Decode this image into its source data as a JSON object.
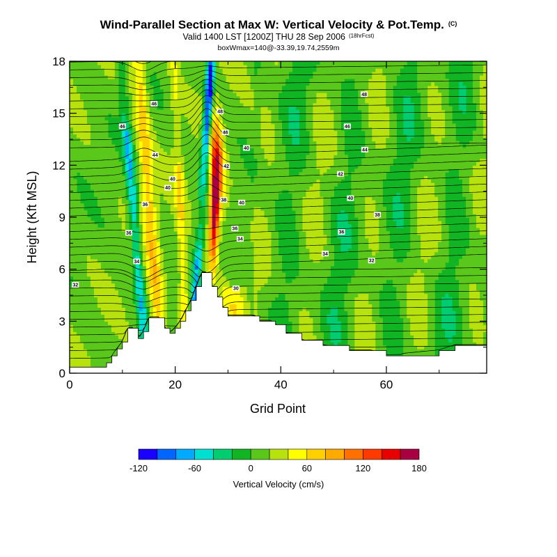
{
  "chart_data": {
    "type": "heatmap",
    "title": "Wind-Parallel Section at Max W: Vertical Velocity & Pot.Temp.",
    "title_suffix": "(C)",
    "subtitle": "Valid 1400 LST [1200Z] THU 28 Sep 2006",
    "subtitle_suffix": "(18hrFcst)",
    "subtitle2": "boxWmax=140@-33.39,19.74,2559m",
    "xlabel": "Grid Point",
    "ylabel": "Height (Kft MSL)",
    "xlim": [
      0,
      79
    ],
    "ylim": [
      0,
      18
    ],
    "xticks": [
      0,
      20,
      40,
      60
    ],
    "yticks": [
      0,
      3,
      6,
      9,
      12,
      15,
      18
    ],
    "terrain": [
      {
        "x": 0,
        "h": 0.35
      },
      {
        "x": 6,
        "h": 0.35
      },
      {
        "x": 7,
        "h": 0.6
      },
      {
        "x": 8,
        "h": 1.0
      },
      {
        "x": 9,
        "h": 1.4
      },
      {
        "x": 10,
        "h": 1.8
      },
      {
        "x": 11,
        "h": 2.6
      },
      {
        "x": 12,
        "h": 2.6
      },
      {
        "x": 13,
        "h": 2.0
      },
      {
        "x": 14,
        "h": 2.4
      },
      {
        "x": 15,
        "h": 3.2
      },
      {
        "x": 17,
        "h": 3.2
      },
      {
        "x": 18,
        "h": 2.6
      },
      {
        "x": 19,
        "h": 2.3
      },
      {
        "x": 20,
        "h": 2.6
      },
      {
        "x": 21,
        "h": 3.0
      },
      {
        "x": 22,
        "h": 3.6
      },
      {
        "x": 23,
        "h": 4.2
      },
      {
        "x": 24,
        "h": 5.0
      },
      {
        "x": 25,
        "h": 5.8
      },
      {
        "x": 26,
        "h": 5.8
      },
      {
        "x": 27,
        "h": 5.0
      },
      {
        "x": 28,
        "h": 4.4
      },
      {
        "x": 29,
        "h": 3.8
      },
      {
        "x": 30,
        "h": 3.3
      },
      {
        "x": 35,
        "h": 3.3
      },
      {
        "x": 36,
        "h": 3.0
      },
      {
        "x": 38,
        "h": 3.0
      },
      {
        "x": 39,
        "h": 2.8
      },
      {
        "x": 41,
        "h": 2.3
      },
      {
        "x": 44,
        "h": 1.9
      },
      {
        "x": 48,
        "h": 1.6
      },
      {
        "x": 53,
        "h": 1.3
      },
      {
        "x": 57,
        "h": 1.3
      },
      {
        "x": 60,
        "h": 1.0
      },
      {
        "x": 70,
        "h": 1.3
      },
      {
        "x": 73,
        "h": 1.6
      },
      {
        "x": 79,
        "h": 1.6
      }
    ],
    "colorbar": {
      "label": "Vertical Velocity (cm/s)",
      "tick_labels": [
        "-120",
        "-60",
        "0",
        "60",
        "120",
        "180"
      ],
      "tick_values": [
        -120,
        -60,
        0,
        60,
        120,
        180
      ],
      "min": -120,
      "max": 180,
      "colors": [
        "#1a00ff",
        "#0066ff",
        "#00aaff",
        "#00e0d0",
        "#00cc70",
        "#11b523",
        "#5ac81a",
        "#b8e20e",
        "#ffff00",
        "#ffd000",
        "#ffaa00",
        "#ff7000",
        "#ff3a00",
        "#e80000",
        "#a80040"
      ]
    },
    "contour_labels": [
      {
        "text": "48",
        "x": 55.8,
        "y": 16.1
      },
      {
        "text": "46",
        "x": 10.0,
        "y": 14.25
      },
      {
        "text": "46",
        "x": 52.6,
        "y": 14.25
      },
      {
        "text": "46",
        "x": 29.5,
        "y": 13.9
      },
      {
        "text": "46",
        "x": 16.0,
        "y": 15.55
      },
      {
        "text": "44",
        "x": 16.2,
        "y": 12.6
      },
      {
        "text": "48",
        "x": 28.5,
        "y": 15.1
      },
      {
        "text": "44",
        "x": 55.9,
        "y": 12.9
      },
      {
        "text": "40",
        "x": 33.5,
        "y": 13.0
      },
      {
        "text": "42",
        "x": 51.3,
        "y": 11.5
      },
      {
        "text": "42",
        "x": 29.7,
        "y": 11.95
      },
      {
        "text": "40",
        "x": 19.5,
        "y": 11.2
      },
      {
        "text": "40",
        "x": 18.6,
        "y": 10.7
      },
      {
        "text": "40",
        "x": 53.2,
        "y": 10.1
      },
      {
        "text": "36",
        "x": 14.3,
        "y": 9.75
      },
      {
        "text": "38",
        "x": 29.2,
        "y": 10.0
      },
      {
        "text": "40",
        "x": 32.6,
        "y": 9.85
      },
      {
        "text": "38",
        "x": 58.3,
        "y": 9.15
      },
      {
        "text": "36",
        "x": 31.3,
        "y": 8.35
      },
      {
        "text": "36",
        "x": 51.5,
        "y": 8.15
      },
      {
        "text": "36",
        "x": 11.2,
        "y": 8.1
      },
      {
        "text": "34",
        "x": 32.3,
        "y": 7.75
      },
      {
        "text": "34",
        "x": 48.4,
        "y": 6.9
      },
      {
        "text": "34",
        "x": 12.7,
        "y": 6.45
      },
      {
        "text": "32",
        "x": 57.2,
        "y": 6.5
      },
      {
        "text": "32",
        "x": 1.1,
        "y": 5.1
      },
      {
        "text": "30",
        "x": 31.5,
        "y": 4.9
      }
    ]
  }
}
